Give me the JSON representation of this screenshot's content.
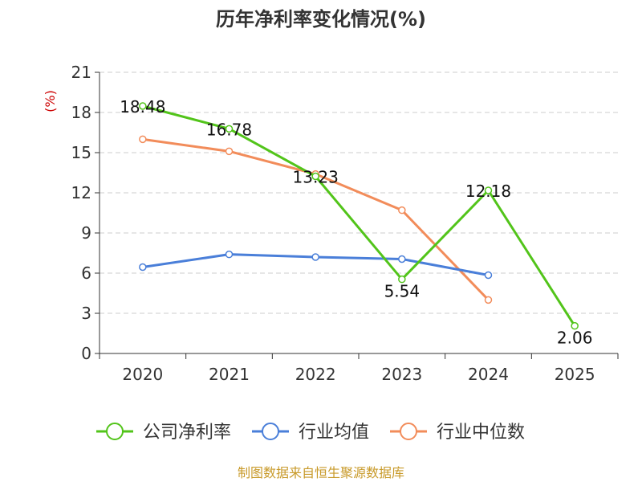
{
  "chart_data": {
    "type": "line",
    "title": "历年净利率变化情况(%)",
    "ylabel": "(%)",
    "xlabel": "",
    "categories": [
      "2020",
      "2021",
      "2022",
      "2023",
      "2024",
      "2025"
    ],
    "ylim": [
      0,
      21
    ],
    "yticks": [
      0,
      3,
      6,
      9,
      12,
      15,
      18,
      21
    ],
    "grid": true,
    "legend_position": "bottom",
    "series": [
      {
        "name": "公司净利率",
        "color": "#52c41a",
        "values": [
          18.48,
          16.78,
          13.23,
          5.54,
          12.18,
          2.06
        ],
        "labels": [
          "18.48",
          "16.78",
          "13.23",
          "5.54",
          "12.18",
          "2.06"
        ]
      },
      {
        "name": "行业均值",
        "color": "#4a7fd9",
        "values": [
          6.45,
          7.4,
          7.2,
          7.05,
          5.85,
          null
        ]
      },
      {
        "name": "行业中位数",
        "color": "#f28c5a",
        "values": [
          16.0,
          15.1,
          13.4,
          10.7,
          4.0,
          null
        ]
      }
    ]
  },
  "ylabel_color": "#cc0000",
  "source": {
    "text": "制图数据来自恒生聚源数据库",
    "color": "#c89a2a"
  }
}
